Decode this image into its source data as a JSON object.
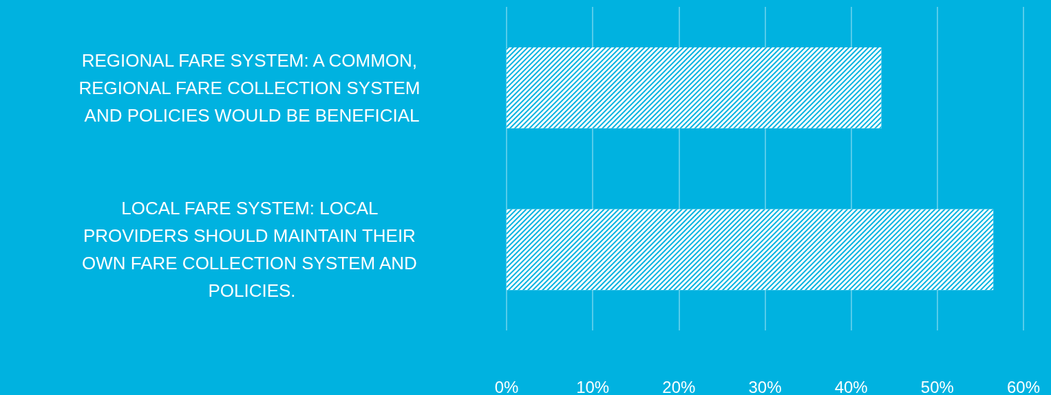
{
  "chart_data": {
    "type": "bar",
    "orientation": "horizontal",
    "categories": [
      "REGIONAL FARE SYSTEM: A COMMON, REGIONAL FARE COLLECTION SYSTEM AND POLICIES WOULD BE BENEFICIAL",
      "LOCAL FARE SYSTEM: LOCAL PROVIDERS SHOULD MAINTAIN THEIR OWN FARE COLLECTION SYSTEM AND POLICIES."
    ],
    "values": [
      43.5,
      56.5
    ],
    "color": "#ffffff",
    "xlim": [
      0,
      60
    ],
    "xticks": [
      {
        "value": 0,
        "label": "0%"
      },
      {
        "value": 10,
        "label": "10%"
      },
      {
        "value": 20,
        "label": "20%"
      },
      {
        "value": 30,
        "label": "30%"
      },
      {
        "value": 40,
        "label": "40%"
      },
      {
        "value": 50,
        "label": "50%"
      },
      {
        "value": 60,
        "label": "60%"
      }
    ],
    "grid": "x"
  }
}
